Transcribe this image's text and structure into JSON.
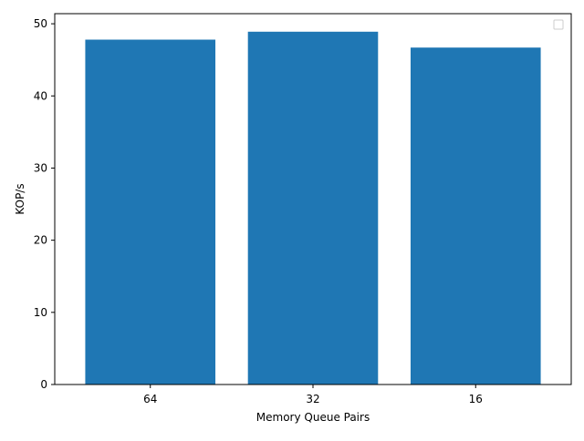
{
  "chart_data": {
    "type": "bar",
    "categories": [
      "64",
      "32",
      "16"
    ],
    "values": [
      47.8,
      48.9,
      46.7
    ],
    "title": "",
    "xlabel": "Memory Queue Pairs",
    "ylabel": "KOP/s",
    "ylim": [
      0,
      51.4
    ],
    "yticks": [
      0,
      10,
      20,
      30,
      40,
      50
    ],
    "grid": false,
    "legend": {
      "placement": "top-right",
      "entries": []
    },
    "colors": {
      "bar": "#1f77b4",
      "axis": "#000000",
      "background": "#ffffff"
    }
  }
}
